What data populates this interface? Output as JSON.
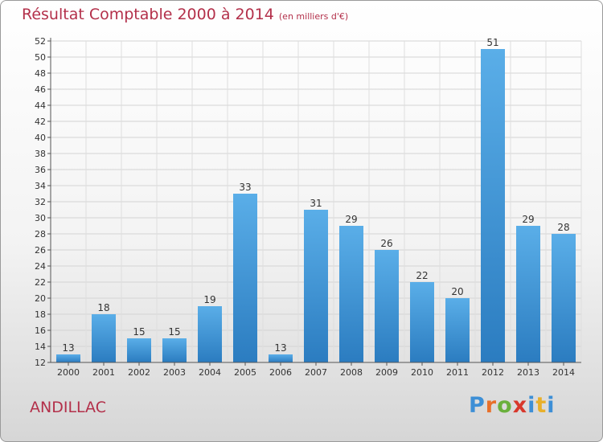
{
  "title": "Résultat Comptable 2000 à 2014",
  "subtitle": "(en milliers d'€)",
  "location": "ANDILLAC",
  "logo": {
    "letters": [
      "P",
      "r",
      "o",
      "x",
      "i",
      "t",
      "i"
    ],
    "colors": [
      "#3d8fd6",
      "#e8702a",
      "#6ab03c",
      "#d8382c",
      "#3d8fd6",
      "#e8b02a",
      "#3d8fd6"
    ]
  },
  "colors": {
    "bar": "#4ea3e0",
    "bar_dark": "#2b7cc0",
    "accent": "#b3304a"
  },
  "chart_data": {
    "type": "bar",
    "title": "Résultat Comptable 2000 à 2014",
    "subtitle": "(en milliers d'€)",
    "categories": [
      "2000",
      "2001",
      "2002",
      "2003",
      "2004",
      "2005",
      "2006",
      "2007",
      "2008",
      "2009",
      "2010",
      "2011",
      "2012",
      "2013",
      "2014"
    ],
    "values": [
      13,
      18,
      15,
      15,
      19,
      33,
      13,
      31,
      29,
      26,
      22,
      20,
      51,
      29,
      28
    ],
    "ylim": [
      12,
      52
    ],
    "yticks": [
      12,
      14,
      16,
      18,
      20,
      22,
      24,
      26,
      28,
      30,
      32,
      34,
      36,
      38,
      40,
      42,
      44,
      46,
      48,
      50,
      52
    ],
    "grid": true,
    "data_labels": true
  }
}
